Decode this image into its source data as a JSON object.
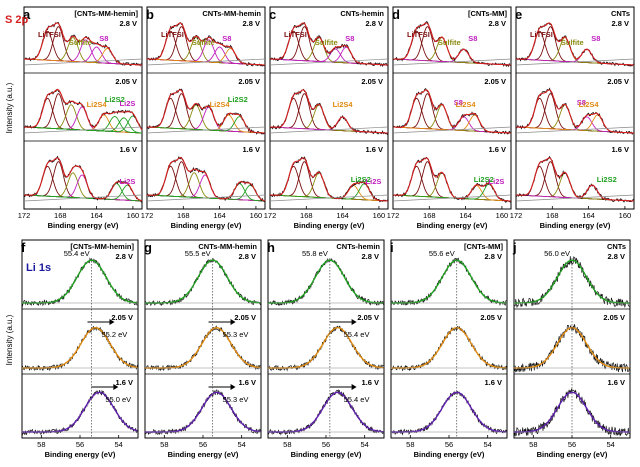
{
  "figure": {
    "top_row_label": "S 2p",
    "bottom_row_label": "Li 1s",
    "ylabel": "Intensity (a.u.)",
    "xlabel": "Binding energy (eV)",
    "colors": {
      "red_fit": "#d62020",
      "dark_red": "#7a1010",
      "olive": "#8a8a10",
      "magenta": "#c020c0",
      "orange": "#e08a10",
      "green": "#20a020",
      "purple": "#6020b0",
      "blue_label": "#1a1aa0",
      "bg_line": "#888888"
    }
  },
  "chart_data": [
    {
      "type": "line",
      "panel": "a",
      "title": "[CNTs-MM-hemin]",
      "element": "S 2p",
      "xlim": [
        172,
        159
      ],
      "xticks": [
        172,
        168,
        164,
        160
      ],
      "rows": [
        {
          "voltage": "2.8 V",
          "labels": [
            "LiTFSI",
            "Sulfite",
            "S8"
          ],
          "peaks": [
            169.4,
            168.2,
            166.6,
            165.2,
            164.0,
            162.8
          ]
        },
        {
          "voltage": "2.05 V",
          "labels": [
            "Li2S4",
            "Li2S2",
            "Li2S"
          ],
          "peaks": [
            169.4,
            168.2,
            166.8,
            165.6,
            163.2,
            162.0,
            161.0,
            160.0
          ]
        },
        {
          "voltage": "1.6 V",
          "labels": [
            "Li2S"
          ],
          "peaks": [
            169.4,
            168.2,
            166.6,
            165.6,
            161.8,
            160.6
          ]
        }
      ]
    },
    {
      "type": "line",
      "panel": "b",
      "title": "CNTs-MM-hemin",
      "element": "S 2p",
      "xlim": [
        172,
        159
      ],
      "xticks": [
        172,
        168,
        164,
        160
      ],
      "rows": [
        {
          "voltage": "2.8 V",
          "labels": [
            "LiTFSI",
            "Sulfite",
            "S8"
          ],
          "peaks": [
            169.4,
            168.2,
            166.6,
            165.2,
            164.0,
            162.8
          ]
        },
        {
          "voltage": "2.05 V",
          "labels": [
            "Li2S4",
            "Li2S2"
          ],
          "peaks": [
            169.4,
            168.2,
            166.6,
            165.2,
            163.0,
            161.8
          ]
        },
        {
          "voltage": "1.6 V",
          "labels": [],
          "peaks": [
            169.4,
            168.2,
            166.8,
            165.6,
            161.8,
            160.6
          ]
        }
      ]
    },
    {
      "type": "line",
      "panel": "c",
      "title": "CNTs-hemin",
      "element": "S 2p",
      "xlim": [
        172,
        159
      ],
      "xticks": [
        172,
        168,
        164,
        160
      ],
      "rows": [
        {
          "voltage": "2.8 V",
          "labels": [
            "LiTFSI",
            "Sulfite",
            "S8"
          ],
          "peaks": [
            169.4,
            168.2,
            166.6,
            164.8,
            163.6
          ]
        },
        {
          "voltage": "2.05 V",
          "labels": [
            "Li2S4"
          ],
          "peaks": [
            169.4,
            168.2,
            166.6,
            164.0
          ]
        },
        {
          "voltage": "1.6 V",
          "labels": [
            "Li2S2",
            "Li2S"
          ],
          "peaks": [
            169.4,
            168.2,
            166.6,
            162.8,
            161.6
          ]
        }
      ]
    },
    {
      "type": "line",
      "panel": "d",
      "title": "[CNTs-MM]",
      "element": "S 2p",
      "xlim": [
        172,
        159
      ],
      "xticks": [
        172,
        168,
        164,
        160
      ],
      "rows": [
        {
          "voltage": "2.8 V",
          "labels": [
            "LiTFSI",
            "Sulfite",
            "S8"
          ],
          "peaks": [
            169.4,
            168.2,
            166.6,
            164.2
          ]
        },
        {
          "voltage": "2.05 V",
          "labels": [
            "S8",
            "Li2S4"
          ],
          "peaks": [
            169.4,
            168.2,
            166.6,
            164.2,
            163.0
          ]
        },
        {
          "voltage": "1.6 V",
          "labels": [
            "Li2S2",
            "Li2S"
          ],
          "peaks": [
            169.4,
            168.2,
            166.6,
            162.8,
            161.4
          ]
        }
      ]
    },
    {
      "type": "line",
      "panel": "e",
      "title": "CNTs",
      "element": "S 2p",
      "xlim": [
        172,
        159
      ],
      "xticks": [
        172,
        168,
        164,
        160
      ],
      "rows": [
        {
          "voltage": "2.8 V",
          "labels": [
            "LiTFSI",
            "Sulfite",
            "S8"
          ],
          "peaks": [
            169.4,
            168.2,
            166.6,
            164.2
          ]
        },
        {
          "voltage": "2.05 V",
          "labels": [
            "S8",
            "Li2S4"
          ],
          "peaks": [
            169.4,
            168.2,
            166.6,
            164.2,
            163.0
          ]
        },
        {
          "voltage": "1.6 V",
          "labels": [
            "Li2S2"
          ],
          "peaks": [
            169.4,
            168.2,
            166.6,
            163.6
          ]
        }
      ]
    },
    {
      "type": "line",
      "panel": "f",
      "title": "[CNTs-MM-hemin]",
      "element": "Li 1s",
      "xlim": [
        59,
        53
      ],
      "xticks": [
        58,
        56,
        54
      ],
      "rows": [
        {
          "voltage": "2.8 V",
          "peak": 55.4,
          "peak_label": "55.4 eV",
          "fit_color": "green"
        },
        {
          "voltage": "2.05 V",
          "peak": 55.2,
          "peak_label": "55.2 eV",
          "fit_color": "orange"
        },
        {
          "voltage": "1.6 V",
          "peak": 55.0,
          "peak_label": "55.0 eV",
          "fit_color": "purple"
        }
      ]
    },
    {
      "type": "line",
      "panel": "g",
      "title": "CNTs-MM-hemin",
      "element": "Li 1s",
      "xlim": [
        59,
        53
      ],
      "xticks": [
        58,
        56,
        54
      ],
      "rows": [
        {
          "voltage": "2.8 V",
          "peak": 55.5,
          "peak_label": "55.5 eV",
          "fit_color": "green"
        },
        {
          "voltage": "2.05 V",
          "peak": 55.3,
          "peak_label": "55.3 eV",
          "fit_color": "orange"
        },
        {
          "voltage": "1.6 V",
          "peak": 55.3,
          "peak_label": "55.3 eV",
          "fit_color": "purple"
        }
      ]
    },
    {
      "type": "line",
      "panel": "h",
      "title": "CNTs-hemin",
      "element": "Li 1s",
      "xlim": [
        59,
        53
      ],
      "xticks": [
        58,
        56,
        54
      ],
      "rows": [
        {
          "voltage": "2.8 V",
          "peak": 55.8,
          "peak_label": "55.8 eV",
          "fit_color": "green"
        },
        {
          "voltage": "2.05 V",
          "peak": 55.4,
          "peak_label": "55.4 eV",
          "fit_color": "orange"
        },
        {
          "voltage": "1.6 V",
          "peak": 55.4,
          "peak_label": "55.4 eV",
          "fit_color": "purple"
        }
      ]
    },
    {
      "type": "line",
      "panel": "i",
      "title": "[CNTs-MM]",
      "element": "Li 1s",
      "xlim": [
        59,
        53
      ],
      "xticks": [
        58,
        56,
        54
      ],
      "rows": [
        {
          "voltage": "2.8 V",
          "peak": 55.6,
          "peak_label": "55.6 eV",
          "fit_color": "green"
        },
        {
          "voltage": "2.05 V",
          "peak": 55.6,
          "peak_label": "",
          "fit_color": "orange"
        },
        {
          "voltage": "1.6 V",
          "peak": 55.6,
          "peak_label": "",
          "fit_color": "purple"
        }
      ]
    },
    {
      "type": "line",
      "panel": "j",
      "title": "CNTs",
      "element": "Li 1s",
      "xlim": [
        59,
        53
      ],
      "xticks": [
        58,
        56,
        54
      ],
      "rows": [
        {
          "voltage": "2.8 V",
          "peak": 56.0,
          "peak_label": "56.0 eV",
          "fit_color": "green"
        },
        {
          "voltage": "2.05 V",
          "peak": 56.0,
          "peak_label": "",
          "fit_color": "orange"
        },
        {
          "voltage": "1.6 V",
          "peak": 56.0,
          "peak_label": "",
          "fit_color": "purple"
        }
      ]
    }
  ]
}
